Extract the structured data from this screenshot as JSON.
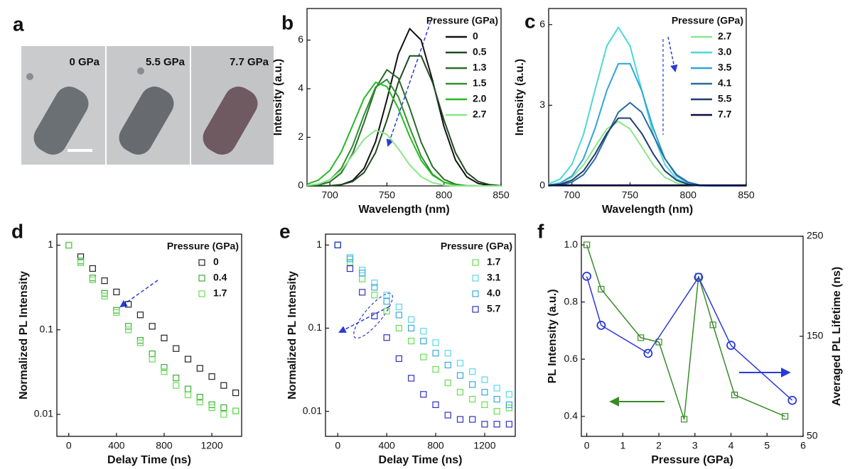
{
  "micrograph": {
    "label": "a",
    "frames": [
      "0 GPa",
      "5.5 GPa",
      "7.7 GPa"
    ]
  },
  "chart_data": [
    {
      "panel": "b",
      "type": "line",
      "x_label": "Wavelength (nm)",
      "y_label": "Intensity (a.u.)",
      "legend_title": "Pressure (GPa)",
      "legend": "upper right",
      "x": [
        680,
        690,
        700,
        710,
        720,
        730,
        740,
        750,
        760,
        770,
        780,
        790,
        800,
        810,
        820,
        830,
        840,
        850
      ],
      "xlim": [
        680,
        850
      ],
      "xticks": [
        700,
        750,
        800,
        850
      ],
      "ylim": [
        0,
        7.3
      ],
      "yticks": [
        0,
        2,
        4,
        6
      ],
      "series": [
        {
          "name": "0",
          "color": "#111111",
          "values": [
            0,
            0,
            0.01,
            0.05,
            0.22,
            0.72,
            1.81,
            3.55,
            5.43,
            6.47,
            6.0,
            4.34,
            2.44,
            1.07,
            0.37,
            0.1,
            0.02,
            0
          ]
        },
        {
          "name": "0.5",
          "color": "#1f4a22",
          "values": [
            0,
            0,
            0.01,
            0.05,
            0.18,
            0.55,
            1.37,
            2.71,
            4.26,
            5.35,
            5.35,
            4.26,
            2.71,
            1.37,
            0.55,
            0.18,
            0.05,
            0.01
          ]
        },
        {
          "name": "1.3",
          "color": "#2a6b2a",
          "values": [
            0.01,
            0.04,
            0.16,
            0.53,
            1.33,
            2.62,
            4.01,
            4.78,
            4.43,
            3.2,
            1.8,
            0.79,
            0.27,
            0.07,
            0.01,
            0,
            0,
            0
          ]
        },
        {
          "name": "1.5",
          "color": "#2f8f2f",
          "values": [
            0.01,
            0.07,
            0.25,
            0.72,
            1.65,
            2.93,
            4.06,
            4.38,
            3.67,
            2.4,
            1.22,
            0.48,
            0.15,
            0.04,
            0.01,
            0,
            0,
            0
          ]
        },
        {
          "name": "2.0",
          "color": "#22bb22",
          "values": [
            0.07,
            0.24,
            0.64,
            1.4,
            2.49,
            3.61,
            4.26,
            4.09,
            3.19,
            2.03,
            1.05,
            0.44,
            0.15,
            0.04,
            0.01,
            0,
            0,
            0
          ]
        },
        {
          "name": "2.7",
          "color": "#8be68b",
          "values": [
            0.02,
            0.08,
            0.25,
            0.64,
            1.26,
            1.92,
            2.29,
            2.12,
            1.53,
            0.86,
            0.38,
            0.13,
            0.03,
            0.01,
            0,
            0,
            0,
            0
          ]
        }
      ]
    },
    {
      "panel": "c",
      "type": "line",
      "x_label": "Wavelength (nm)",
      "y_label": "Intensity (a.u.)",
      "legend_title": "Pressure (GPa)",
      "legend": "upper right",
      "x": [
        680,
        690,
        700,
        710,
        720,
        730,
        740,
        750,
        760,
        770,
        780,
        790,
        800,
        810,
        820,
        830,
        840,
        850
      ],
      "xlim": [
        680,
        850
      ],
      "xticks": [
        700,
        750,
        800,
        850
      ],
      "ylim": [
        0,
        6.6
      ],
      "yticks": [
        0,
        3,
        6
      ],
      "series": [
        {
          "name": "2.7",
          "color": "#8be68b",
          "values": [
            0.03,
            0.11,
            0.32,
            0.78,
            1.46,
            2.12,
            2.4,
            2.12,
            1.46,
            0.78,
            0.32,
            0.11,
            0.03,
            0.01,
            0,
            0,
            0,
            0
          ]
        },
        {
          "name": "3.0",
          "color": "#4fd6d6",
          "values": [
            0.07,
            0.26,
            0.8,
            1.92,
            3.58,
            5.21,
            5.9,
            5.21,
            3.58,
            1.92,
            0.8,
            0.26,
            0.07,
            0.01,
            0,
            0,
            0,
            0
          ]
        },
        {
          "name": "3.5",
          "color": "#2fa4da",
          "values": [
            0.02,
            0.11,
            0.37,
            1.02,
            2.15,
            3.55,
            4.55,
            4.55,
            3.55,
            2.15,
            1.02,
            0.37,
            0.11,
            0.02,
            0,
            0,
            0,
            0
          ]
        },
        {
          "name": "4.1",
          "color": "#2b6c9e",
          "values": [
            0.01,
            0.03,
            0.14,
            0.42,
            1.01,
            1.88,
            2.74,
            3.1,
            2.74,
            1.88,
            1.01,
            0.42,
            0.14,
            0.03,
            0.01,
            0,
            0,
            0
          ]
        },
        {
          "name": "5.5",
          "color": "#1f3d6e",
          "values": [
            0.01,
            0.06,
            0.21,
            0.56,
            1.19,
            1.96,
            2.52,
            2.52,
            1.96,
            1.19,
            0.56,
            0.21,
            0.06,
            0.01,
            0,
            0,
            0,
            0
          ]
        },
        {
          "name": "7.7",
          "color": "#0c0c44",
          "values": [
            0.03,
            0.03,
            0.03,
            0.03,
            0.03,
            0.03,
            0.03,
            0.03,
            0.03,
            0.03,
            0.03,
            0.03,
            0.03,
            0.03,
            0.03,
            0.03,
            0.03,
            0.03
          ]
        }
      ]
    },
    {
      "panel": "d",
      "type": "scatter",
      "marker": "square",
      "log_y": true,
      "x_label": "Delay Time (ns)",
      "y_label": "Normalized PL Intensity",
      "legend_title": "Pressure (GPa)",
      "legend": "upper right",
      "x": [
        0,
        100,
        200,
        300,
        400,
        500,
        600,
        700,
        800,
        900,
        1000,
        1100,
        1200,
        1300,
        1400
      ],
      "xlim": [
        -100,
        1450
      ],
      "xticks": [
        0,
        400,
        800,
        1200
      ],
      "ylim": [
        0.0055,
        1.35
      ],
      "yticks": [
        1,
        0.1,
        0.01
      ],
      "series": [
        {
          "name": "0",
          "color": "#222222",
          "values": [
            1,
            0.73,
            0.53,
            0.38,
            0.28,
            0.2,
            0.15,
            0.11,
            0.08,
            0.06,
            0.045,
            0.035,
            0.028,
            0.022,
            0.018
          ]
        },
        {
          "name": "0.4",
          "color": "#3caa3c",
          "values": [
            1,
            0.65,
            0.41,
            0.27,
            0.17,
            0.11,
            0.075,
            0.052,
            0.036,
            0.027,
            0.02,
            0.016,
            0.013,
            0.012,
            0.011
          ]
        },
        {
          "name": "1.7",
          "color": "#66e050",
          "values": [
            1,
            0.62,
            0.39,
            0.25,
            0.16,
            0.1,
            0.07,
            0.045,
            0.032,
            0.022,
            0.017,
            0.014,
            0.012,
            0.01,
            0.011
          ]
        }
      ]
    },
    {
      "panel": "e",
      "type": "scatter",
      "marker": "square",
      "log_y": true,
      "x_label": "Delay Time (ns)",
      "y_label": "Normalized PL Intensity",
      "legend_title": "Pressure (GPa)",
      "legend": "upper right",
      "x": [
        0,
        100,
        200,
        300,
        400,
        500,
        600,
        700,
        800,
        900,
        1000,
        1100,
        1200,
        1300,
        1400
      ],
      "xlim": [
        -100,
        1450
      ],
      "xticks": [
        0,
        400,
        800,
        1200
      ],
      "ylim": [
        0.005,
        1.35
      ],
      "yticks": [
        1,
        0.1,
        0.01
      ],
      "series": [
        {
          "name": "1.7",
          "color": "#66e050",
          "values": [
            1,
            0.62,
            0.39,
            0.25,
            0.16,
            0.1,
            0.07,
            0.045,
            0.032,
            0.022,
            0.017,
            0.014,
            0.012,
            0.01,
            0.011
          ]
        },
        {
          "name": "3.1",
          "color": "#5ad8e8",
          "values": [
            1,
            0.71,
            0.5,
            0.35,
            0.25,
            0.18,
            0.127,
            0.092,
            0.067,
            0.05,
            0.038,
            0.03,
            0.024,
            0.019,
            0.016
          ]
        },
        {
          "name": "4.0",
          "color": "#38a8e0",
          "values": [
            1,
            0.68,
            0.46,
            0.31,
            0.21,
            0.144,
            0.1,
            0.07,
            0.05,
            0.036,
            0.027,
            0.021,
            0.017,
            0.014,
            0.012
          ]
        },
        {
          "name": "5.7",
          "color": "#3030c0",
          "values": [
            1,
            0.52,
            0.27,
            0.14,
            0.077,
            0.043,
            0.025,
            0.016,
            0.012,
            0.009,
            0.008,
            0.008,
            0.007,
            0.007,
            0.007
          ]
        }
      ]
    },
    {
      "panel": "f",
      "type": "line",
      "x_label": "Pressure (GPa)",
      "y_label": "PL Intensity (a.u.)",
      "y2_label": "Averaged PL Lifetime (ns)",
      "xlim": [
        -0.15,
        6
      ],
      "xticks": [
        0,
        1,
        2,
        3,
        4,
        5,
        6
      ],
      "ylim": [
        0.33,
        1.03
      ],
      "yticks": [
        0.4,
        0.6,
        0.8,
        {
          "value": 1,
          "label": "1.0"
        }
      ],
      "y2lim": [
        50,
        250
      ],
      "y2ticks": [
        50,
        150,
        250
      ],
      "series": [
        {
          "color": "#3a8a2a",
          "marker": "square",
          "x": [
            0,
            0.4,
            1.5,
            2.0,
            2.7,
            3.1,
            3.5,
            4.1,
            5.5
          ],
          "values": [
            1.0,
            0.845,
            0.675,
            0.66,
            0.39,
            0.89,
            0.72,
            0.475,
            0.4
          ]
        },
        {
          "color": "#2a3ad8",
          "marker": "circle",
          "axis": "y2",
          "x": [
            0,
            0.4,
            1.7,
            3.1,
            4.0,
            5.7
          ],
          "values": [
            210,
            161,
            133,
            209,
            141,
            86
          ]
        }
      ]
    }
  ]
}
